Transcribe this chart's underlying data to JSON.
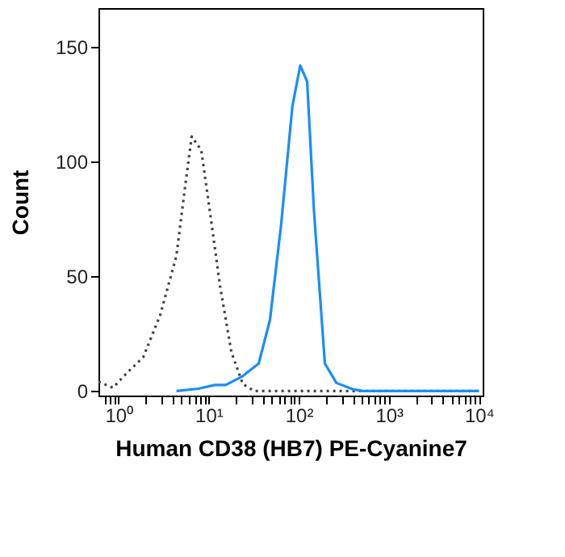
{
  "chart_data": {
    "type": "line",
    "xlabel": "Human CD38 (HB7) PE-Cyanine7",
    "ylabel": "Count",
    "log": "x",
    "grid": false,
    "xlim": [
      0.6,
      11000
    ],
    "ylim": [
      -2,
      167
    ],
    "yticks": [
      0,
      50,
      100,
      150
    ],
    "xticks": [
      {
        "value": 0.7,
        "label": null
      },
      {
        "value": 0.8,
        "label": null
      },
      {
        "value": 0.9,
        "label": null
      },
      {
        "value": 1,
        "label": "10⁰"
      },
      {
        "value": 2,
        "label": null
      },
      {
        "value": 3,
        "label": null
      },
      {
        "value": 4,
        "label": null
      },
      {
        "value": 5,
        "label": null
      },
      {
        "value": 6,
        "label": null
      },
      {
        "value": 7,
        "label": null
      },
      {
        "value": 8,
        "label": null
      },
      {
        "value": 9,
        "label": null
      },
      {
        "value": 10,
        "label": "10¹"
      },
      {
        "value": 20,
        "label": null
      },
      {
        "value": 30,
        "label": null
      },
      {
        "value": 40,
        "label": null
      },
      {
        "value": 50,
        "label": null
      },
      {
        "value": 60,
        "label": null
      },
      {
        "value": 70,
        "label": null
      },
      {
        "value": 80,
        "label": null
      },
      {
        "value": 90,
        "label": null
      },
      {
        "value": 100,
        "label": "10²"
      },
      {
        "value": 200,
        "label": null
      },
      {
        "value": 300,
        "label": null
      },
      {
        "value": 400,
        "label": null
      },
      {
        "value": 500,
        "label": null
      },
      {
        "value": 600,
        "label": null
      },
      {
        "value": 700,
        "label": null
      },
      {
        "value": 800,
        "label": null
      },
      {
        "value": 900,
        "label": null
      },
      {
        "value": 1000,
        "label": "10³"
      },
      {
        "value": 2000,
        "label": null
      },
      {
        "value": 3000,
        "label": null
      },
      {
        "value": 4000,
        "label": null
      },
      {
        "value": 5000,
        "label": null
      },
      {
        "value": 6000,
        "label": null
      },
      {
        "value": 7000,
        "label": null
      },
      {
        "value": 8000,
        "label": null
      },
      {
        "value": 9000,
        "label": null
      },
      {
        "value": 10000,
        "label": "10⁴"
      }
    ],
    "series": [
      {
        "color": "#444444",
        "line_style": "dotted",
        "x": [
          0.6,
          0.87,
          1.23,
          1.88,
          2.9,
          4.4,
          5.4,
          6.5,
          8.3,
          10.2,
          13.5,
          17.9,
          24,
          32,
          10000
        ],
        "values": [
          4,
          1.4,
          7.7,
          14.7,
          33,
          59,
          87,
          111,
          105,
          80,
          45,
          17,
          3,
          0,
          0
        ]
      },
      {
        "color": "#1a8cff",
        "line_style": "solid",
        "x": [
          4.4,
          7.7,
          11.8,
          15.5,
          24,
          36,
          48,
          64,
          85,
          104,
          124,
          148,
          195,
          262,
          400,
          525,
          10000
        ],
        "values": [
          0,
          1,
          2.6,
          2.6,
          6.5,
          12,
          31,
          73,
          124,
          142,
          135,
          78,
          12,
          3.5,
          0.7,
          0,
          0
        ]
      }
    ]
  }
}
